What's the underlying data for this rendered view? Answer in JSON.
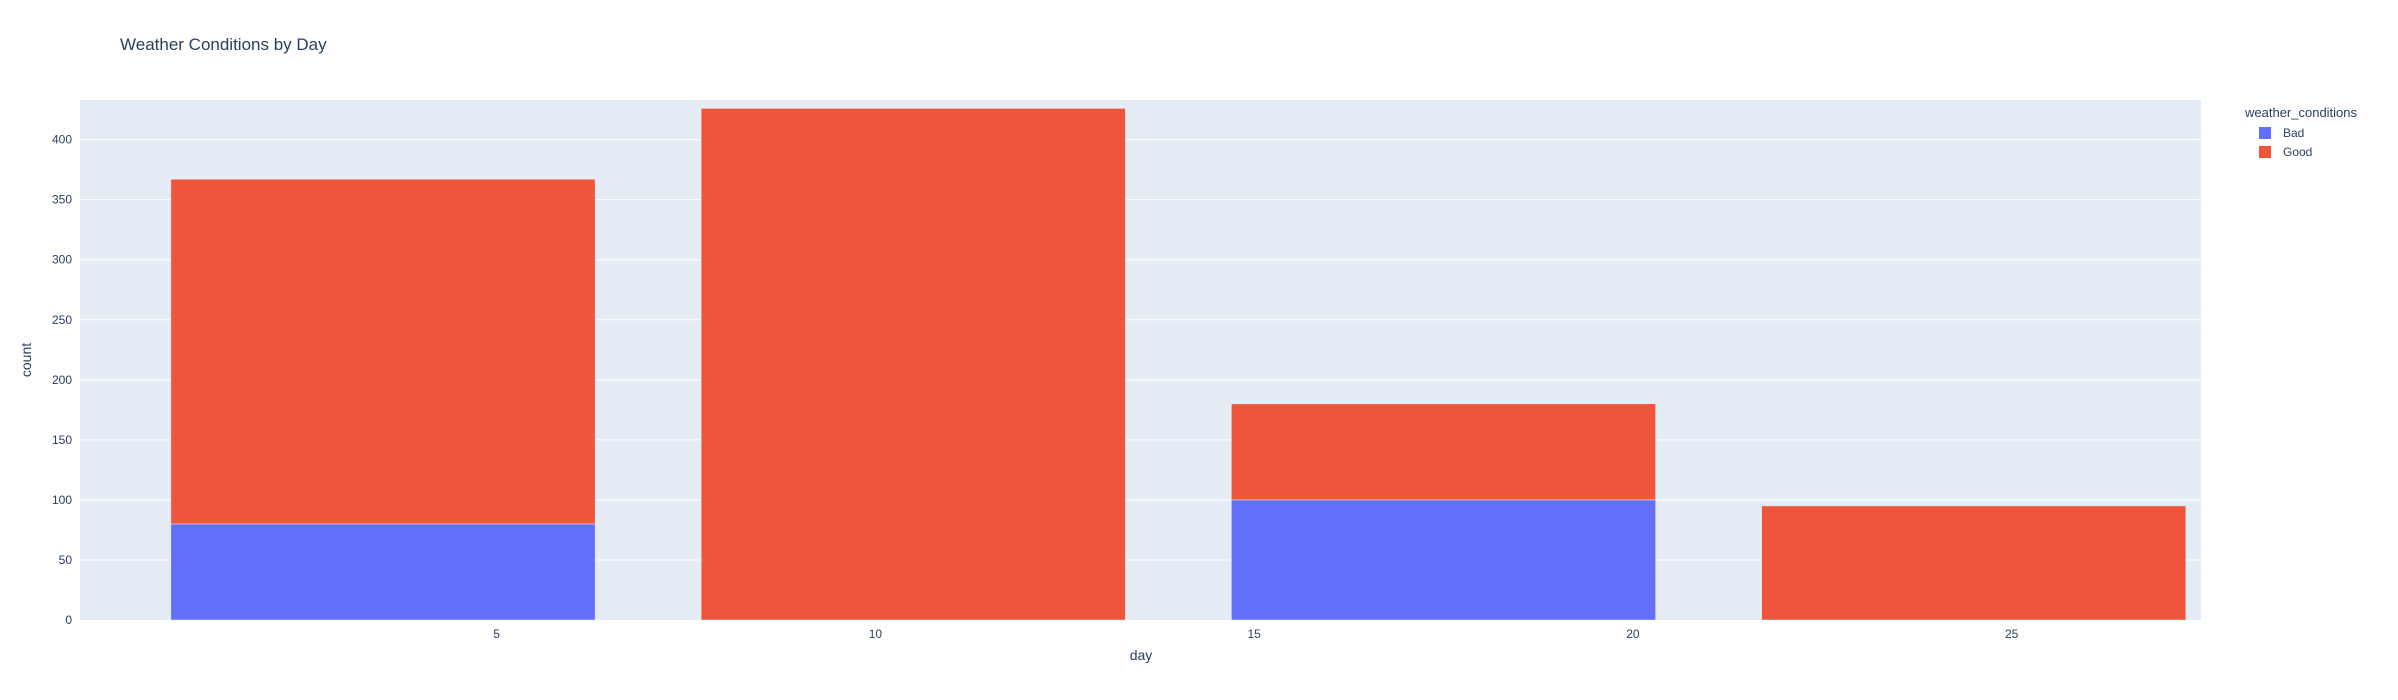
{
  "chart_data": {
    "type": "bar",
    "barmode": "stack",
    "title": "Weather Conditions by Day",
    "xlabel": "day",
    "ylabel": "count",
    "x": [
      3.5,
      10.5,
      17.5,
      24.5
    ],
    "bin_width": 5.6,
    "xlim": [
      -0.5,
      27.5
    ],
    "ylim": [
      0,
      433
    ],
    "xticks": [
      5,
      10,
      15,
      20,
      25
    ],
    "yticks": [
      0,
      50,
      100,
      150,
      200,
      250,
      300,
      350,
      400
    ],
    "series": [
      {
        "name": "Bad",
        "color": "#636efa",
        "values": [
          80,
          0,
          100,
          0
        ]
      },
      {
        "name": "Good",
        "color": "#ef553b",
        "values": [
          287,
          426,
          80,
          95
        ]
      }
    ],
    "legend": {
      "title": "weather_conditions",
      "position": "top-right"
    },
    "plot_bgcolor": "#e5ecf6",
    "grid": true
  }
}
